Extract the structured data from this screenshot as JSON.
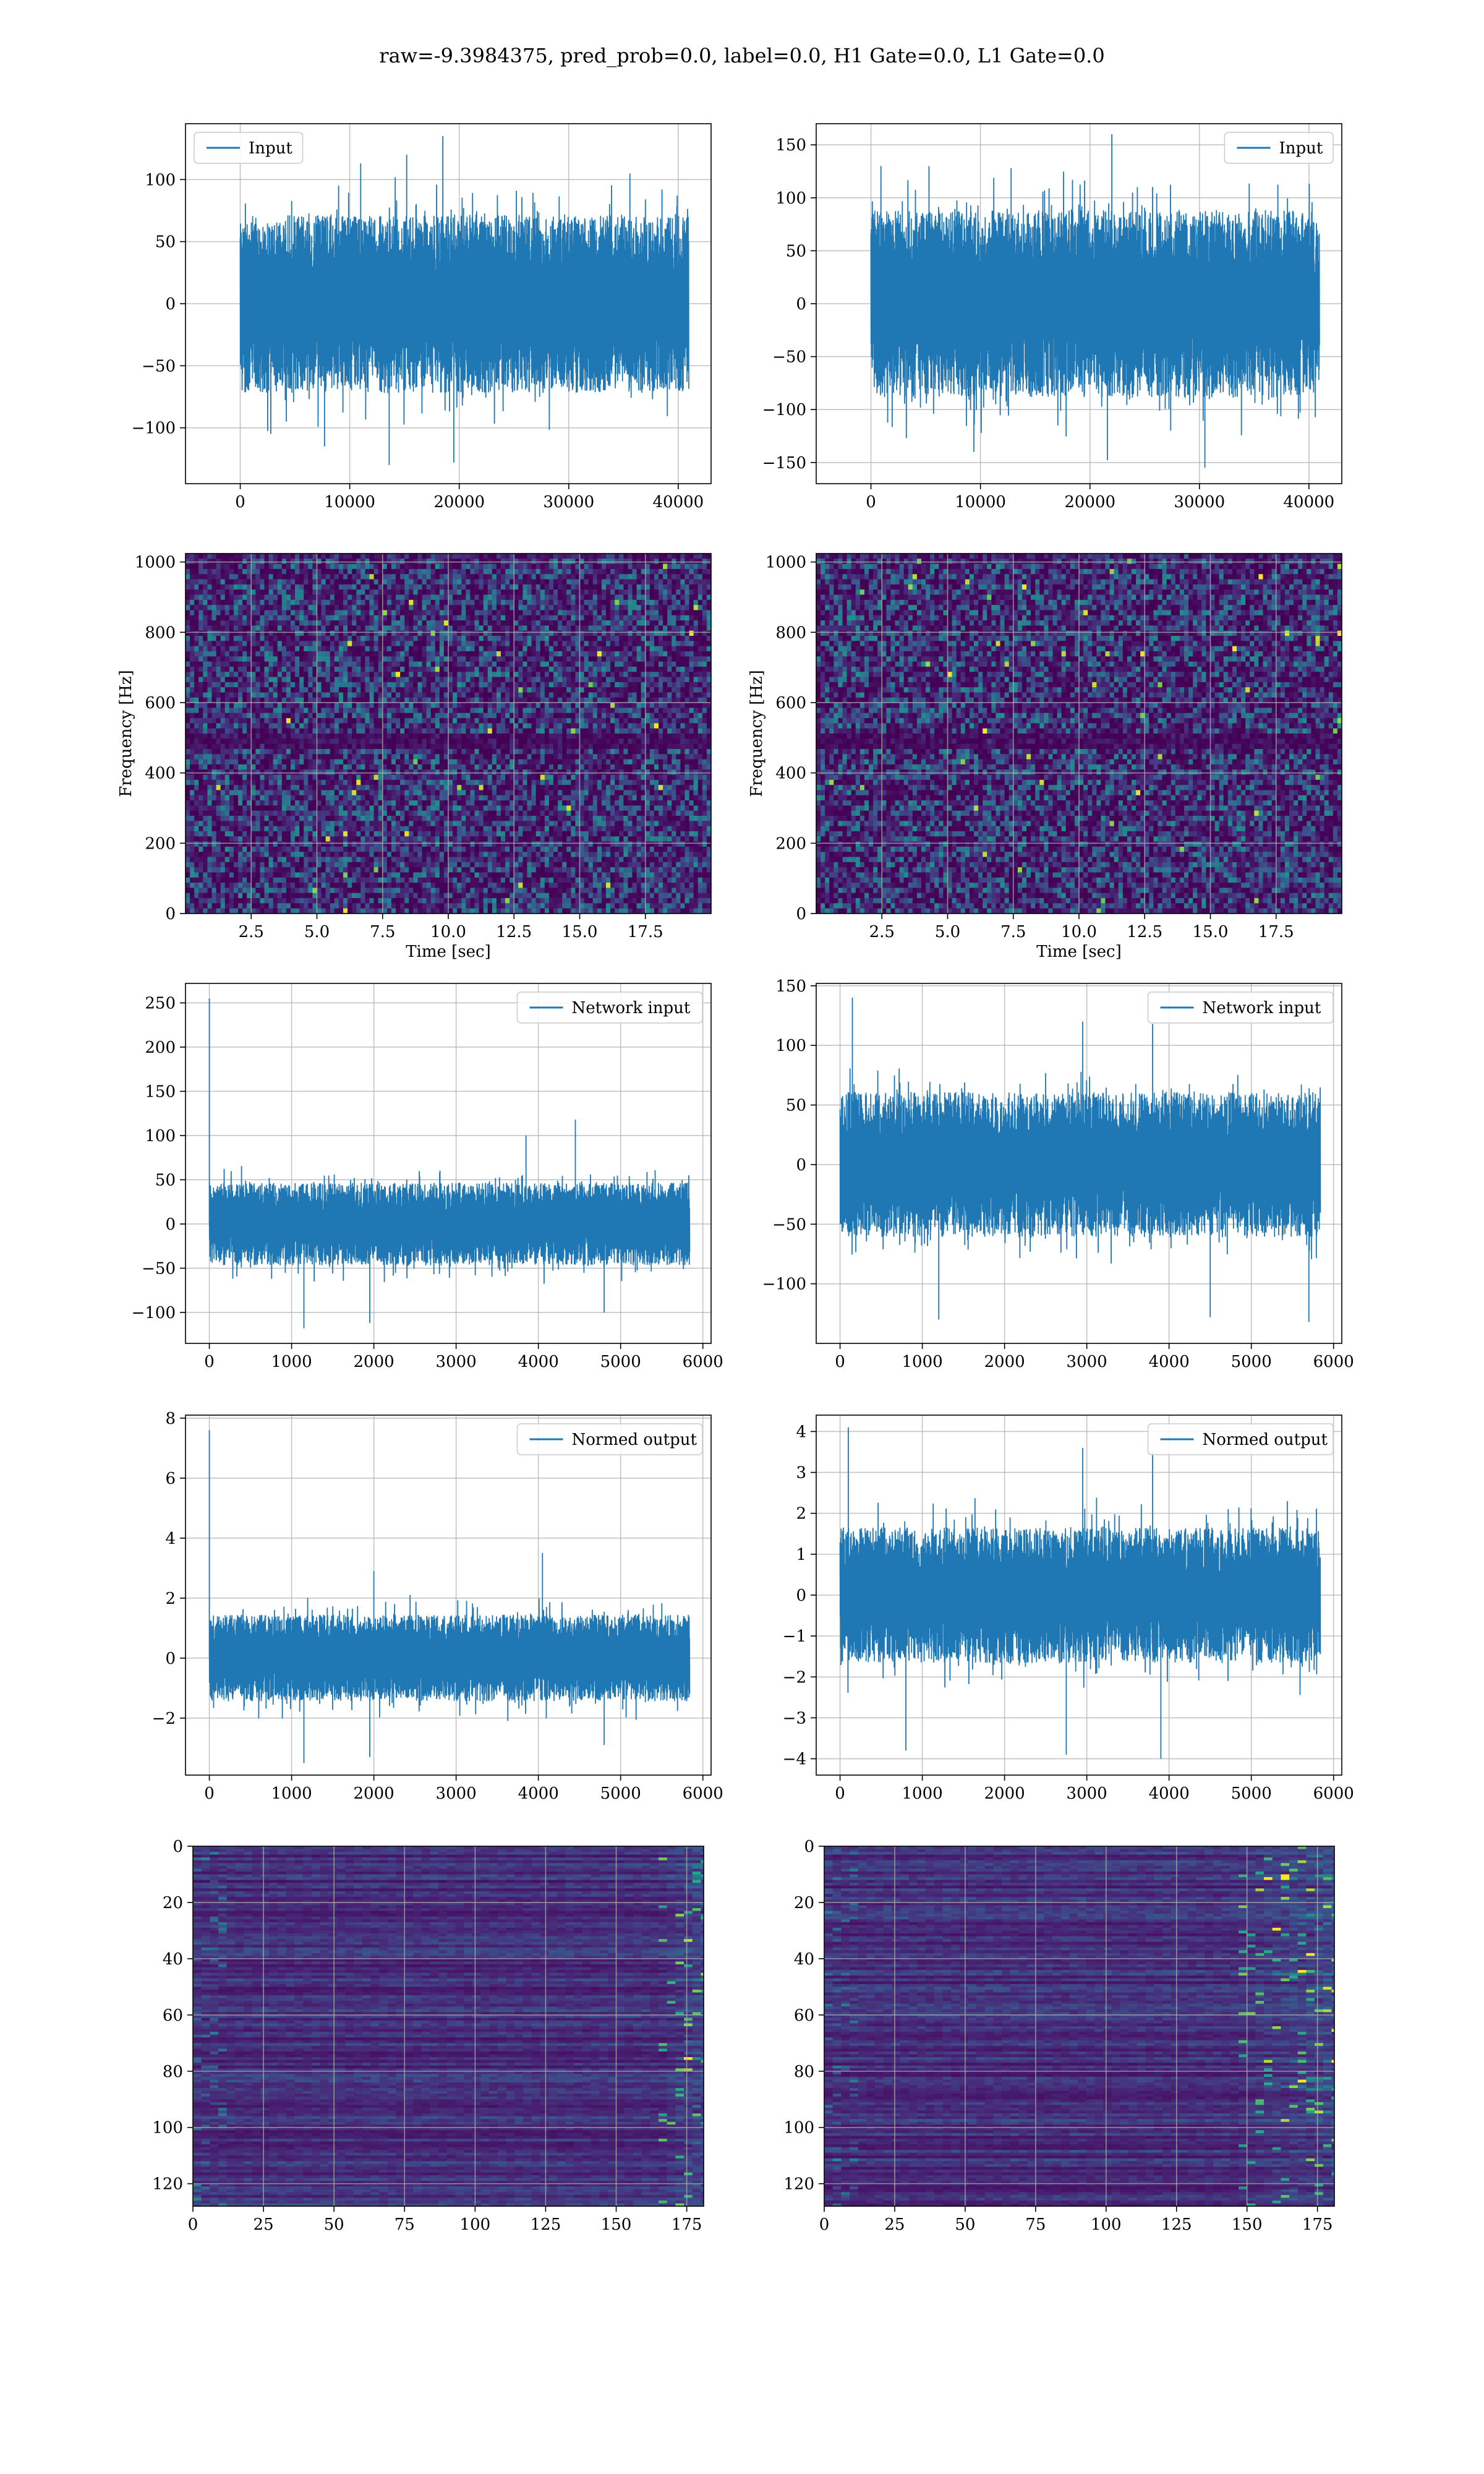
{
  "figure": {
    "suptitle": "raw=-9.3984375, pred_prob=0.0, label=0.0, H1 Gate=0.0, L1 Gate=0.0"
  },
  "colors": {
    "series": "#1f77b4",
    "grid": "#b0b0b0",
    "spine": "#000000",
    "viridis_low": "#440154",
    "viridis_mid": "#21918c",
    "viridis_high": "#fde725"
  },
  "chart_data": [
    {
      "type": "line",
      "panel": "row1-left",
      "legend": "Input",
      "legend_loc": "upper left",
      "xlim": [
        -5000,
        43000
      ],
      "ylim": [
        -145,
        145
      ],
      "xticks": [
        0,
        10000,
        20000,
        30000,
        40000
      ],
      "yticks": [
        -100,
        -50,
        0,
        50,
        100
      ],
      "x_range": [
        0,
        40960
      ],
      "envelope": {
        "core": 65,
        "spikes_up": [
          [
            18500,
            135
          ],
          [
            15200,
            120
          ],
          [
            11000,
            113
          ]
        ],
        "spikes_down": [
          [
            13600,
            -130
          ],
          [
            19500,
            -128
          ],
          [
            7700,
            -115
          ]
        ]
      },
      "grid": true
    },
    {
      "type": "line",
      "panel": "row1-right",
      "legend": "Input",
      "legend_loc": "upper right",
      "xlim": [
        -5000,
        43000
      ],
      "ylim": [
        -170,
        170
      ],
      "xticks": [
        0,
        10000,
        20000,
        30000,
        40000
      ],
      "yticks": [
        -150,
        -100,
        -50,
        0,
        50,
        100,
        150
      ],
      "x_range": [
        0,
        40960
      ],
      "envelope": {
        "core": 80,
        "spikes_up": [
          [
            22000,
            160
          ],
          [
            5300,
            130
          ],
          [
            12800,
            128
          ]
        ],
        "spikes_down": [
          [
            30500,
            -155
          ],
          [
            21600,
            -148
          ],
          [
            9400,
            -140
          ]
        ]
      },
      "grid": true
    },
    {
      "type": "heatmap",
      "panel": "row2-left",
      "xlabel": "Time [sec]",
      "ylabel": "Frequency [Hz]",
      "xlim": [
        0,
        20
      ],
      "ylim": [
        0,
        1024
      ],
      "xticks": [
        2.5,
        5.0,
        7.5,
        10.0,
        12.5,
        15.0,
        17.5
      ],
      "xticklabels": [
        "2.5",
        "5.0",
        "7.5",
        "10.0",
        "12.5",
        "15.0",
        "17.5"
      ],
      "yticks": [
        0,
        200,
        400,
        600,
        800,
        1000
      ],
      "dark_band_hz": 500,
      "grid": true
    },
    {
      "type": "heatmap",
      "panel": "row2-right",
      "xlabel": "Time [sec]",
      "ylabel": "Frequency [Hz]",
      "xlim": [
        0,
        20
      ],
      "ylim": [
        0,
        1024
      ],
      "xticks": [
        2.5,
        5.0,
        7.5,
        10.0,
        12.5,
        15.0,
        17.5
      ],
      "xticklabels": [
        "2.5",
        "5.0",
        "7.5",
        "10.0",
        "12.5",
        "15.0",
        "17.5"
      ],
      "yticks": [
        0,
        200,
        400,
        600,
        800,
        1000
      ],
      "dark_band_hz": 500,
      "grid": true
    },
    {
      "type": "line",
      "panel": "row3-left",
      "legend": "Network input",
      "legend_loc": "upper right",
      "xlim": [
        -290,
        6100
      ],
      "ylim": [
        -135,
        272
      ],
      "xticks": [
        0,
        1000,
        2000,
        3000,
        4000,
        5000,
        6000
      ],
      "yticks": [
        -100,
        -50,
        0,
        50,
        100,
        150,
        200,
        250
      ],
      "x_range": [
        0,
        5840
      ],
      "envelope": {
        "core": 42,
        "spikes_up": [
          [
            0,
            255
          ],
          [
            4450,
            118
          ],
          [
            3850,
            100
          ]
        ],
        "spikes_down": [
          [
            1150,
            -118
          ],
          [
            1950,
            -112
          ],
          [
            4800,
            -100
          ]
        ]
      },
      "grid": true
    },
    {
      "type": "line",
      "panel": "row3-right",
      "legend": "Network input",
      "legend_loc": "upper right",
      "xlim": [
        -290,
        6100
      ],
      "ylim": [
        -150,
        152
      ],
      "xticks": [
        0,
        1000,
        2000,
        3000,
        4000,
        5000,
        6000
      ],
      "yticks": [
        -100,
        -50,
        0,
        50,
        100,
        150
      ],
      "x_range": [
        0,
        5840
      ],
      "envelope": {
        "core": 55,
        "spikes_up": [
          [
            150,
            140
          ],
          [
            2950,
            120
          ],
          [
            3800,
            118
          ]
        ],
        "spikes_down": [
          [
            5700,
            -132
          ],
          [
            1200,
            -130
          ],
          [
            4500,
            -128
          ]
        ]
      },
      "grid": true
    },
    {
      "type": "line",
      "panel": "row4-left",
      "legend": "Normed output",
      "legend_loc": "upper right",
      "xlim": [
        -290,
        6100
      ],
      "ylim": [
        -3.9,
        8.1
      ],
      "xticks": [
        0,
        1000,
        2000,
        3000,
        4000,
        5000,
        6000
      ],
      "yticks": [
        -2,
        0,
        2,
        4,
        6,
        8
      ],
      "x_range": [
        0,
        5840
      ],
      "envelope": {
        "core": 1.3,
        "spikes_up": [
          [
            0,
            7.6
          ],
          [
            4050,
            3.5
          ],
          [
            2000,
            2.9
          ]
        ],
        "spikes_down": [
          [
            1150,
            -3.5
          ],
          [
            1950,
            -3.3
          ],
          [
            4800,
            -2.9
          ]
        ]
      },
      "grid": true
    },
    {
      "type": "line",
      "panel": "row4-right",
      "legend": "Normed output",
      "legend_loc": "upper right",
      "xlim": [
        -290,
        6100
      ],
      "ylim": [
        -4.4,
        4.4
      ],
      "xticks": [
        0,
        1000,
        2000,
        3000,
        4000,
        5000,
        6000
      ],
      "yticks": [
        -4,
        -3,
        -2,
        -1,
        0,
        1,
        2,
        3,
        4
      ],
      "x_range": [
        0,
        5840
      ],
      "envelope": {
        "core": 1.5,
        "spikes_up": [
          [
            100,
            4.1
          ],
          [
            2950,
            3.6
          ],
          [
            3800,
            3.5
          ]
        ],
        "spikes_down": [
          [
            3900,
            -4.0
          ],
          [
            2750,
            -3.9
          ],
          [
            800,
            -3.8
          ]
        ]
      },
      "grid": true
    },
    {
      "type": "heatmap",
      "panel": "row5-left",
      "xlim": [
        0,
        181
      ],
      "ylim": [
        128,
        0
      ],
      "xticks": [
        0,
        25,
        50,
        75,
        100,
        125,
        150,
        175
      ],
      "yticks": [
        0,
        20,
        40,
        60,
        80,
        100,
        120
      ],
      "bright_region_x": [
        165,
        181
      ],
      "grid": true
    },
    {
      "type": "heatmap",
      "panel": "row5-right",
      "xlim": [
        0,
        181
      ],
      "ylim": [
        128,
        0
      ],
      "xticks": [
        0,
        25,
        50,
        75,
        100,
        125,
        150,
        175
      ],
      "yticks": [
        0,
        20,
        40,
        60,
        80,
        100,
        120
      ],
      "bright_region_x": [
        145,
        181
      ],
      "grid": true
    }
  ]
}
